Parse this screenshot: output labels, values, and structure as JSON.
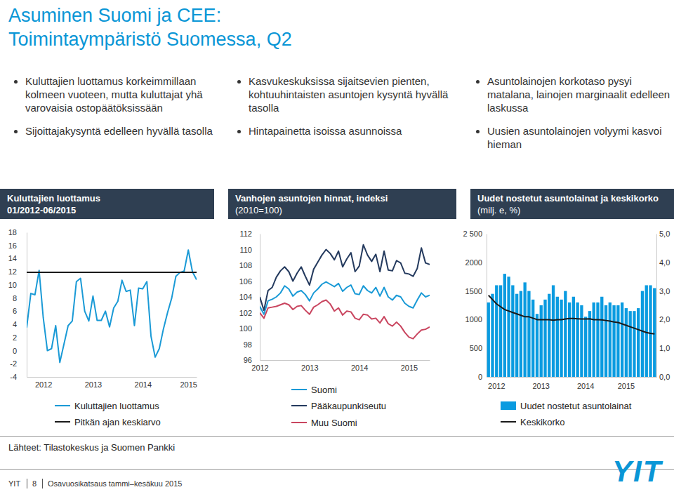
{
  "header": {
    "title": [
      "Asuminen Suomi ja CEE:",
      "Toimintaympäristö Suomessa, Q2"
    ]
  },
  "bullets": [
    [
      "Kuluttajien luottamus korkeimmillaan kolmeen vuoteen, mutta kuluttajat yhä varovaisia ostopäätöksissään",
      "Sijoittajakysyntä edelleen hyvällä tasolla"
    ],
    [
      "Kasvukeskuksissa sijaitsevien pienten, kohtuuhintaisten asuntojen kysyntä hyvällä tasolla",
      "Hintapainetta isoissa asunnoissa"
    ],
    [
      "Asuntolainojen korkotaso pysyi matalana, lainojen marginaalit edelleen laskussa",
      "Uusien asuntolainojen volyymi kasvoi hieman"
    ]
  ],
  "chart_data": [
    {
      "type": "line",
      "title": "Kuluttajien luottamus",
      "subtitle": "01/2012-06/2015",
      "categories": [
        null,
        null,
        null,
        null,
        "2012",
        null,
        null,
        null,
        null,
        null,
        null,
        null,
        null,
        null,
        null,
        null,
        "2013",
        null,
        null,
        null,
        null,
        null,
        null,
        null,
        null,
        null,
        null,
        null,
        "2014",
        null,
        null,
        null,
        null,
        null,
        null,
        null,
        null,
        null,
        null,
        "2015",
        null,
        null
      ],
      "series": [
        {
          "name": "Kuluttajien luottamus",
          "color": "#1a9ad6",
          "values": [
            3.5,
            8.7,
            8.5,
            12.2,
            5.0,
            0.0,
            0.3,
            3.8,
            -1.8,
            1.0,
            3.8,
            4.5,
            10.5,
            11.0,
            6.0,
            4.5,
            8.3,
            4.6,
            4.6,
            6.0,
            3.6,
            6.5,
            7.5,
            10.7,
            9.0,
            9.2,
            3.8,
            9.5,
            9.4,
            10.5,
            2.2,
            -1.0,
            0.3,
            3.3,
            5.8,
            8.0,
            11.3,
            11.9,
            12.1,
            15.3,
            12.0,
            10.8
          ]
        },
        {
          "name": "Pitkän ajan keskiarvo",
          "color": "#1a1a1a",
          "values": [
            11.9,
            11.9,
            11.9,
            11.9,
            11.9,
            11.9,
            11.9,
            11.9,
            11.9,
            11.9,
            11.9,
            11.9,
            11.9,
            11.9,
            11.9,
            11.9,
            11.9,
            11.9,
            11.9,
            11.9,
            11.9,
            11.9,
            11.9,
            11.9,
            11.9,
            11.9,
            11.9,
            11.9,
            11.9,
            11.9,
            11.9,
            11.9,
            11.9,
            11.9,
            11.9,
            11.9,
            11.9,
            11.9,
            11.9,
            11.9,
            11.9,
            11.9
          ]
        }
      ],
      "ylim": [
        -4,
        18
      ],
      "yticks": [
        -4,
        -2,
        0,
        2,
        4,
        6,
        8,
        10,
        12,
        14,
        16,
        18
      ],
      "grid": false,
      "legend": "bottom"
    },
    {
      "type": "line",
      "title": "Vanhojen asuntojen hinnat, indeksi",
      "subtitle": "(2010=100)",
      "categories": [
        "2012",
        null,
        null,
        null,
        null,
        null,
        null,
        null,
        null,
        null,
        null,
        null,
        "2013",
        null,
        null,
        null,
        null,
        null,
        null,
        null,
        null,
        null,
        null,
        null,
        "2014",
        null,
        null,
        null,
        null,
        null,
        null,
        null,
        null,
        null,
        null,
        null,
        "2015",
        null,
        null,
        null,
        null,
        null
      ],
      "series": [
        {
          "name": "Suomi",
          "color": "#1a9ad6",
          "values": [
            102.8,
            101.8,
            103.5,
            103.7,
            104.0,
            104.5,
            105.4,
            105.0,
            104.1,
            104.6,
            104.8,
            104.3,
            103.5,
            104.5,
            105.0,
            105.6,
            105.9,
            105.6,
            105.3,
            105.7,
            104.7,
            105.2,
            105.5,
            104.4,
            104.3,
            105.4,
            104.8,
            104.5,
            105.2,
            104.1,
            105.2,
            104.0,
            103.6,
            104.2,
            104.0,
            103.2,
            102.8,
            102.6,
            103.6,
            104.5,
            104.0,
            104.2
          ]
        },
        {
          "name": "Pääkaupunkiseutu",
          "color": "#243a5e",
          "values": [
            104.0,
            102.3,
            104.8,
            105.2,
            106.5,
            107.3,
            107.8,
            107.2,
            106.0,
            107.0,
            107.8,
            106.6,
            105.5,
            107.5,
            108.4,
            109.3,
            110.0,
            109.5,
            108.7,
            109.8,
            107.8,
            108.8,
            109.6,
            107.2,
            107.9,
            110.6,
            109.3,
            108.5,
            109.4,
            107.2,
            109.8,
            107.4,
            107.3,
            108.6,
            108.3,
            107.0,
            106.9,
            106.6,
            107.6,
            110.2,
            108.3,
            108.1
          ]
        },
        {
          "name": "Muu Suomi",
          "color": "#c9455f",
          "values": [
            102.0,
            101.3,
            102.6,
            102.7,
            102.8,
            103.0,
            103.2,
            103.0,
            102.4,
            102.8,
            102.9,
            102.3,
            101.8,
            102.7,
            103.0,
            103.4,
            103.6,
            103.1,
            102.2,
            102.6,
            101.7,
            102.2,
            102.1,
            101.3,
            101.1,
            101.8,
            101.7,
            101.2,
            101.3,
            100.7,
            101.5,
            100.6,
            100.3,
            100.8,
            100.3,
            99.5,
            98.9,
            98.7,
            99.3,
            99.8,
            99.9,
            100.2
          ]
        }
      ],
      "ylim": [
        96,
        112
      ],
      "yticks": [
        96,
        98,
        100,
        102,
        104,
        106,
        108,
        110,
        112
      ],
      "grid": false,
      "legend": "bottom"
    },
    {
      "type": "bar",
      "title": "Uudet nostetut asuntolainat ja keskikorko",
      "subtitle": "(milj. e, %)",
      "categories": [
        null,
        null,
        "2012",
        null,
        null,
        null,
        null,
        null,
        null,
        null,
        null,
        null,
        null,
        "2013",
        null,
        null,
        null,
        null,
        null,
        null,
        null,
        null,
        null,
        null,
        "2014",
        null,
        null,
        null,
        null,
        null,
        null,
        null,
        null,
        null,
        "2015",
        null,
        null,
        null,
        null,
        null,
        null,
        null
      ],
      "series": [
        {
          "name": "Uudet nostetut asuntolainat",
          "color": "#0a9be0",
          "type": "bar",
          "values": [
            1300,
            1450,
            1600,
            1600,
            1800,
            1750,
            1600,
            1450,
            1500,
            1650,
            1500,
            1350,
            1100,
            1250,
            1350,
            1450,
            1600,
            1400,
            1350,
            1500,
            1300,
            1400,
            1300,
            1250,
            1050,
            1150,
            1300,
            1300,
            1400,
            1250,
            1300,
            1250,
            1250,
            1300,
            1200,
            1150,
            1150,
            1200,
            1500,
            1600,
            1600,
            1550
          ]
        },
        {
          "name": "Keskikorko",
          "color": "#1a1a1a",
          "type": "line",
          "axis": "y2",
          "values": [
            2.85,
            2.7,
            2.55,
            2.45,
            2.35,
            2.3,
            2.25,
            2.2,
            2.15,
            2.1,
            2.1,
            2.05,
            2.0,
            2.0,
            2.0,
            2.0,
            1.98,
            2.0,
            2.0,
            2.02,
            2.04,
            2.04,
            2.03,
            2.02,
            2.02,
            2.03,
            2.0,
            2.0,
            1.99,
            1.97,
            1.95,
            1.92,
            1.9,
            1.85,
            1.8,
            1.75,
            1.7,
            1.65,
            1.6,
            1.55,
            1.52,
            1.5
          ]
        }
      ],
      "ylim": [
        0,
        2500
      ],
      "yticks": [
        0,
        500,
        1000,
        1500,
        2000,
        {
          "value": 2500,
          "label": "2 500"
        }
      ],
      "y2lim": [
        0,
        5
      ],
      "y2ticks": [
        {
          "value": 0,
          "label": "0,0"
        },
        {
          "value": 1,
          "label": "1,0"
        },
        {
          "value": 2,
          "label": "2,0"
        },
        {
          "value": 3,
          "label": "3,0"
        },
        {
          "value": 4,
          "label": "4,0"
        },
        {
          "value": 5,
          "label": "5,0"
        }
      ],
      "grid": false,
      "legend": "bottom"
    }
  ],
  "footer": {
    "source": "Lähteet: Tilastokeskus ja Suomen Pankki",
    "company": "YIT",
    "page": "8",
    "report": "Osavuosikatsaus tammi–kesäkuu 2015",
    "logo": "YIT"
  }
}
